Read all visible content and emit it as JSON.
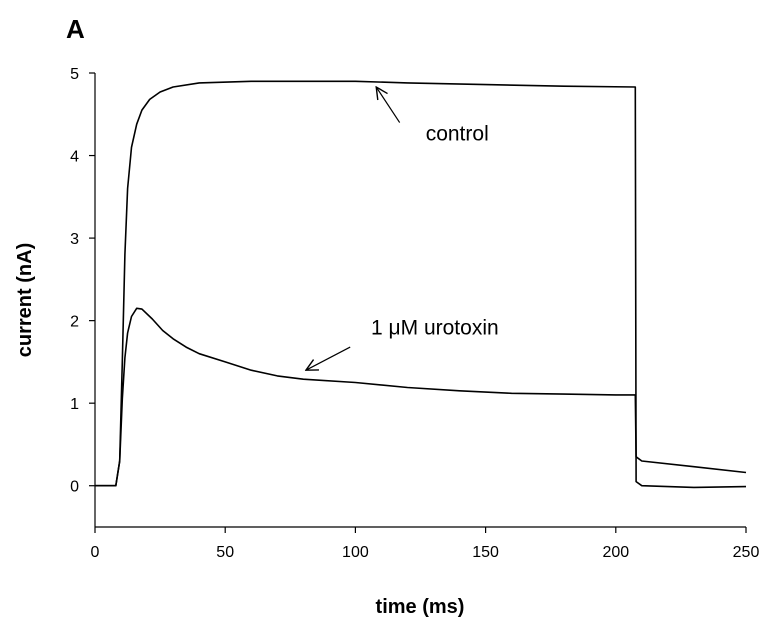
{
  "panel_label": "A",
  "chart_data": {
    "type": "line",
    "title": "",
    "xlabel": "time (ms)",
    "ylabel": "current (nA)",
    "xlim": [
      0,
      250
    ],
    "ylim": [
      -0.5,
      5
    ],
    "x_ticks": [
      0,
      50,
      100,
      150,
      200,
      250
    ],
    "y_ticks": [
      0,
      1,
      2,
      3,
      4,
      5
    ],
    "grid": false,
    "legend": "none",
    "series": [
      {
        "points": [
          [
            0,
            0
          ],
          [
            8,
            0
          ],
          [
            9.5,
            0.3
          ],
          [
            10.5,
            1.5
          ],
          [
            11.5,
            2.8
          ],
          [
            12.5,
            3.6
          ],
          [
            14,
            4.1
          ],
          [
            16,
            4.38
          ],
          [
            18,
            4.55
          ],
          [
            21,
            4.68
          ],
          [
            25,
            4.77
          ],
          [
            30,
            4.83
          ],
          [
            40,
            4.88
          ],
          [
            60,
            4.9
          ],
          [
            80,
            4.9
          ],
          [
            100,
            4.9
          ],
          [
            120,
            4.88
          ],
          [
            150,
            4.86
          ],
          [
            180,
            4.84
          ],
          [
            207.5,
            4.83
          ],
          [
            207.8,
            0.05
          ],
          [
            210,
            0.0
          ],
          [
            230,
            -0.02
          ],
          [
            250,
            -0.01
          ]
        ],
        "color": "#000000"
      },
      {
        "points": [
          [
            0,
            0
          ],
          [
            8,
            0
          ],
          [
            9.5,
            0.3
          ],
          [
            10.5,
            1.05
          ],
          [
            11.5,
            1.55
          ],
          [
            12.5,
            1.85
          ],
          [
            14,
            2.05
          ],
          [
            16,
            2.15
          ],
          [
            18,
            2.14
          ],
          [
            22,
            2.02
          ],
          [
            26,
            1.88
          ],
          [
            30,
            1.78
          ],
          [
            35,
            1.68
          ],
          [
            40,
            1.6
          ],
          [
            50,
            1.5
          ],
          [
            60,
            1.4
          ],
          [
            70,
            1.33
          ],
          [
            80,
            1.29
          ],
          [
            100,
            1.25
          ],
          [
            120,
            1.19
          ],
          [
            140,
            1.15
          ],
          [
            160,
            1.12
          ],
          [
            180,
            1.11
          ],
          [
            200,
            1.1
          ],
          [
            207.5,
            1.1
          ],
          [
            207.8,
            0.35
          ],
          [
            210,
            0.3
          ],
          [
            230,
            0.23
          ],
          [
            250,
            0.16
          ]
        ],
        "color": "#000000"
      }
    ],
    "annotations": [
      {
        "text": "control",
        "text_at": [
          127,
          4.18
        ],
        "arrow_from": [
          117,
          4.4
        ],
        "arrow_to": [
          108,
          4.83
        ]
      },
      {
        "text": "1 μM urotoxin",
        "text_at": [
          106,
          1.83
        ],
        "arrow_from": [
          98,
          1.68
        ],
        "arrow_to": [
          81,
          1.4
        ]
      }
    ]
  }
}
